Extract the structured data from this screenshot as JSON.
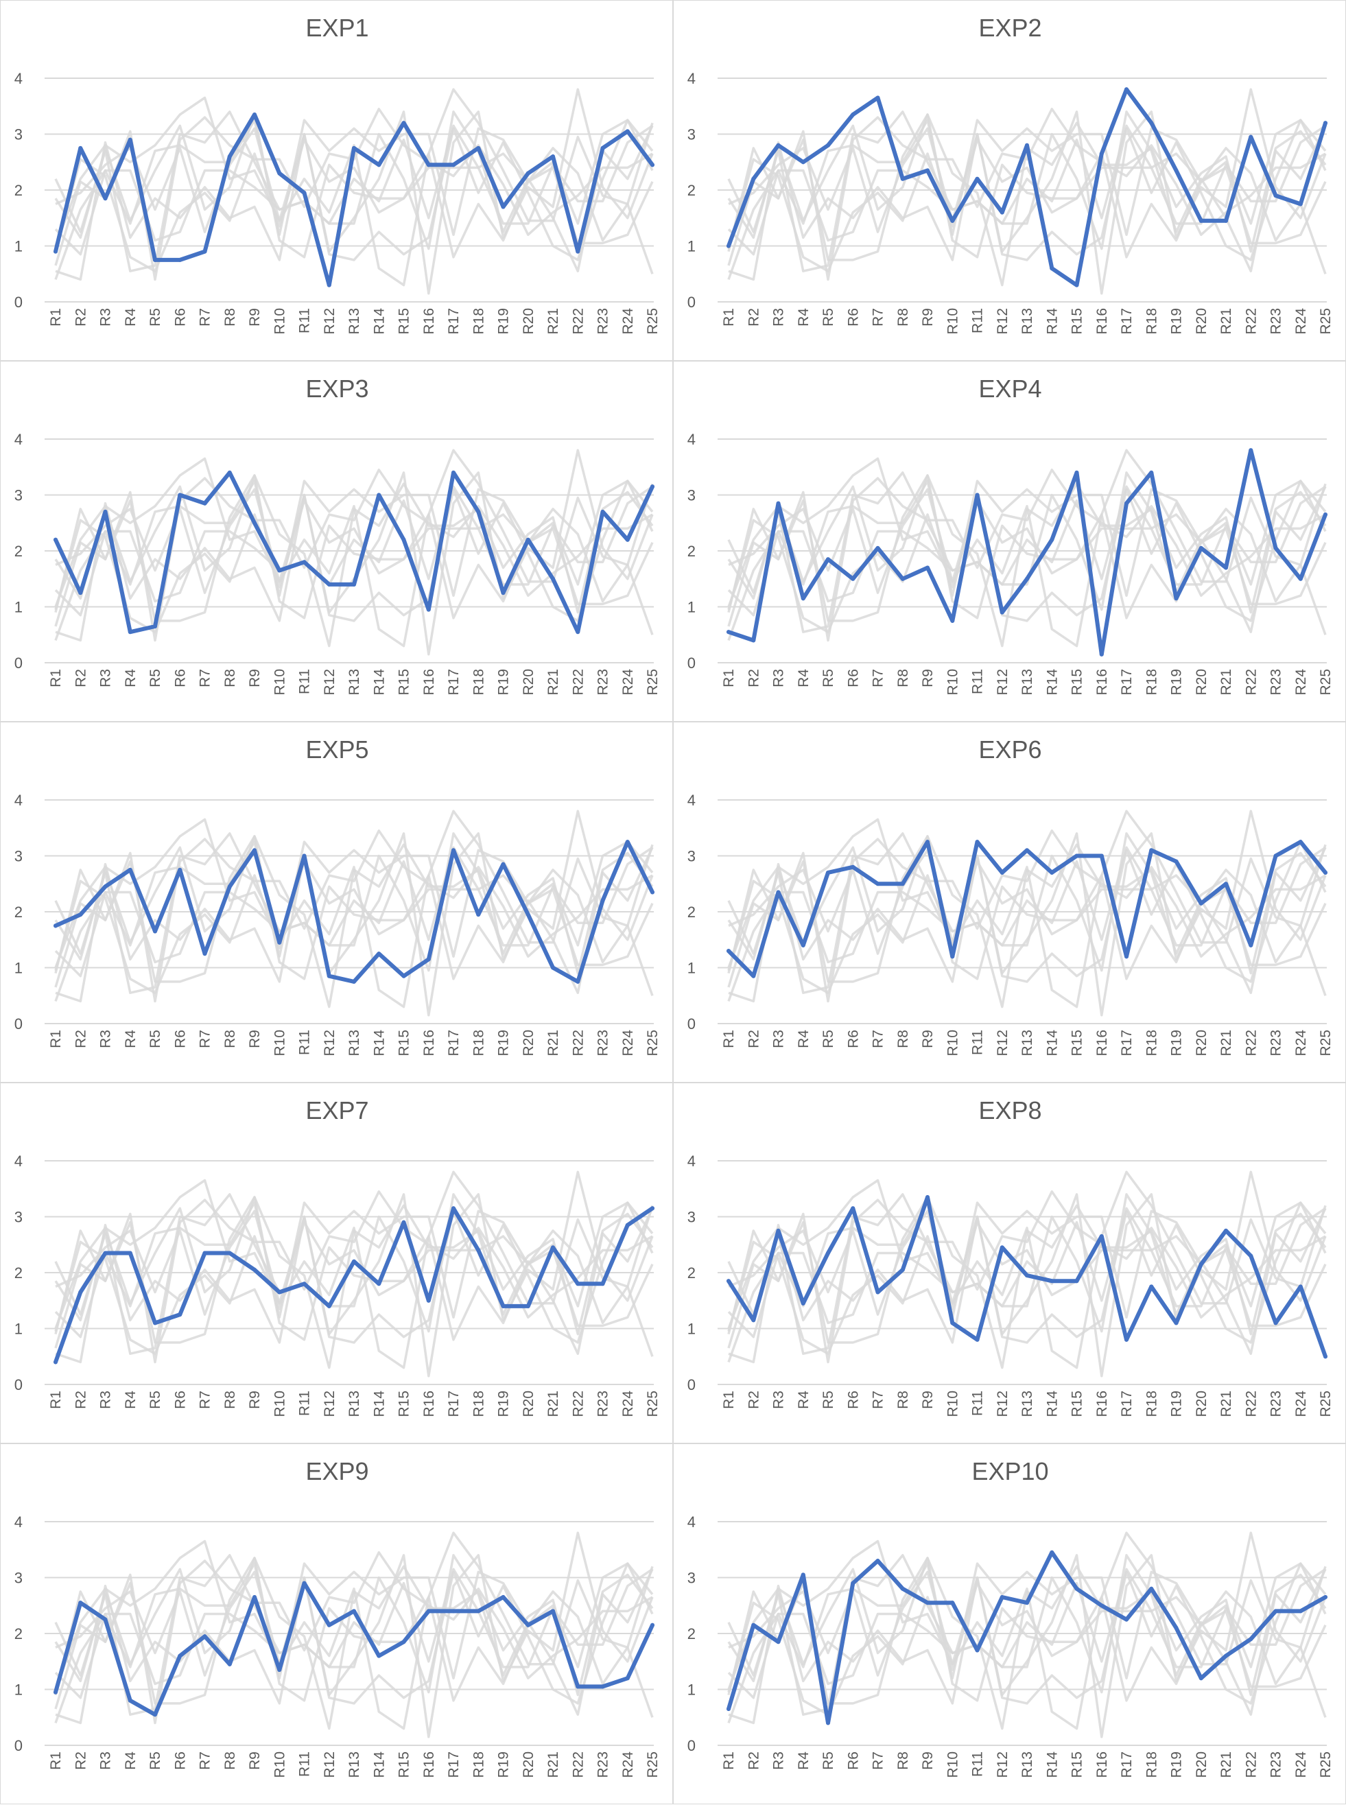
{
  "chart_data": {
    "type": "line",
    "categories": [
      "R1",
      "R2",
      "R3",
      "R4",
      "R5",
      "R6",
      "R7",
      "R8",
      "R9",
      "R10",
      "R11",
      "R12",
      "R13",
      "R14",
      "R15",
      "R16",
      "R17",
      "R18",
      "R19",
      "R20",
      "R21",
      "R22",
      "R23",
      "R24",
      "R25"
    ],
    "ylim": [
      0,
      4
    ],
    "yticks": [
      "0",
      "1",
      "2",
      "3",
      "4"
    ],
    "grid": true,
    "colors": {
      "highlight": "#4472c4",
      "background_series": "#d9d9d9",
      "gridline": "#d9d9d9"
    },
    "panels": [
      {
        "title": "EXP1",
        "values": [
          0.9,
          2.75,
          1.85,
          2.9,
          0.75,
          0.75,
          0.9,
          2.6,
          3.35,
          2.3,
          1.95,
          0.3,
          2.75,
          2.45,
          3.2,
          2.45,
          2.45,
          2.75,
          1.7,
          2.3,
          2.6,
          0.9,
          2.75,
          3.05,
          2.45
        ]
      },
      {
        "title": "EXP2",
        "values": [
          1.0,
          2.2,
          2.8,
          2.5,
          2.8,
          3.35,
          3.65,
          2.2,
          2.35,
          1.45,
          2.2,
          1.6,
          2.8,
          0.6,
          0.3,
          2.65,
          3.8,
          3.2,
          2.35,
          1.45,
          1.45,
          2.95,
          1.9,
          1.75,
          3.2
        ]
      },
      {
        "title": "EXP3",
        "values": [
          2.2,
          1.25,
          2.7,
          0.55,
          0.65,
          3.0,
          2.85,
          3.4,
          2.5,
          1.65,
          1.8,
          1.4,
          1.4,
          3.0,
          2.2,
          0.95,
          3.4,
          2.7,
          1.25,
          2.2,
          1.5,
          0.55,
          2.7,
          2.2,
          3.15
        ]
      },
      {
        "title": "EXP4",
        "values": [
          0.55,
          0.4,
          2.85,
          1.15,
          1.85,
          1.5,
          2.05,
          1.5,
          1.7,
          0.75,
          3.0,
          0.9,
          1.5,
          2.2,
          3.4,
          0.15,
          2.85,
          3.4,
          1.15,
          2.05,
          1.7,
          3.8,
          2.05,
          1.5,
          2.65
        ]
      },
      {
        "title": "EXP5",
        "values": [
          1.75,
          1.95,
          2.45,
          2.75,
          1.65,
          2.75,
          1.25,
          2.45,
          3.1,
          1.45,
          3.0,
          0.85,
          0.75,
          1.25,
          0.85,
          1.15,
          3.1,
          1.95,
          2.85,
          1.95,
          1.0,
          0.75,
          2.2,
          3.25,
          2.35
        ]
      },
      {
        "title": "EXP6",
        "values": [
          1.3,
          0.85,
          2.35,
          1.4,
          2.7,
          2.8,
          2.5,
          2.5,
          3.25,
          1.2,
          3.25,
          2.7,
          3.1,
          2.7,
          3.0,
          3.0,
          1.2,
          3.1,
          2.9,
          2.15,
          2.5,
          1.4,
          3.0,
          3.25,
          2.7
        ]
      },
      {
        "title": "EXP7",
        "values": [
          0.4,
          1.65,
          2.35,
          2.35,
          1.1,
          1.25,
          2.35,
          2.35,
          2.05,
          1.65,
          1.8,
          1.4,
          2.2,
          1.8,
          2.9,
          1.5,
          3.15,
          2.4,
          1.4,
          1.4,
          2.45,
          1.8,
          1.8,
          2.85,
          3.15
        ]
      },
      {
        "title": "EXP8",
        "values": [
          1.85,
          1.15,
          2.75,
          1.45,
          2.35,
          3.15,
          1.65,
          2.05,
          3.35,
          1.1,
          0.8,
          2.45,
          1.95,
          1.85,
          1.85,
          2.65,
          0.8,
          1.75,
          1.1,
          2.15,
          2.75,
          2.3,
          1.1,
          1.75,
          0.5
        ]
      },
      {
        "title": "EXP9",
        "values": [
          0.95,
          2.55,
          2.25,
          0.8,
          0.55,
          1.6,
          1.95,
          1.45,
          2.65,
          1.35,
          2.9,
          2.15,
          2.4,
          1.6,
          1.85,
          2.4,
          2.4,
          2.4,
          2.65,
          2.15,
          2.4,
          1.05,
          1.05,
          1.2,
          2.15
        ]
      },
      {
        "title": "EXP10",
        "values": [
          0.65,
          2.15,
          1.85,
          3.05,
          0.4,
          2.9,
          3.3,
          2.8,
          2.55,
          2.55,
          1.7,
          2.65,
          2.55,
          3.45,
          2.8,
          2.5,
          2.25,
          2.8,
          2.1,
          1.2,
          1.6,
          1.9,
          2.4,
          2.4,
          2.65
        ]
      }
    ]
  }
}
